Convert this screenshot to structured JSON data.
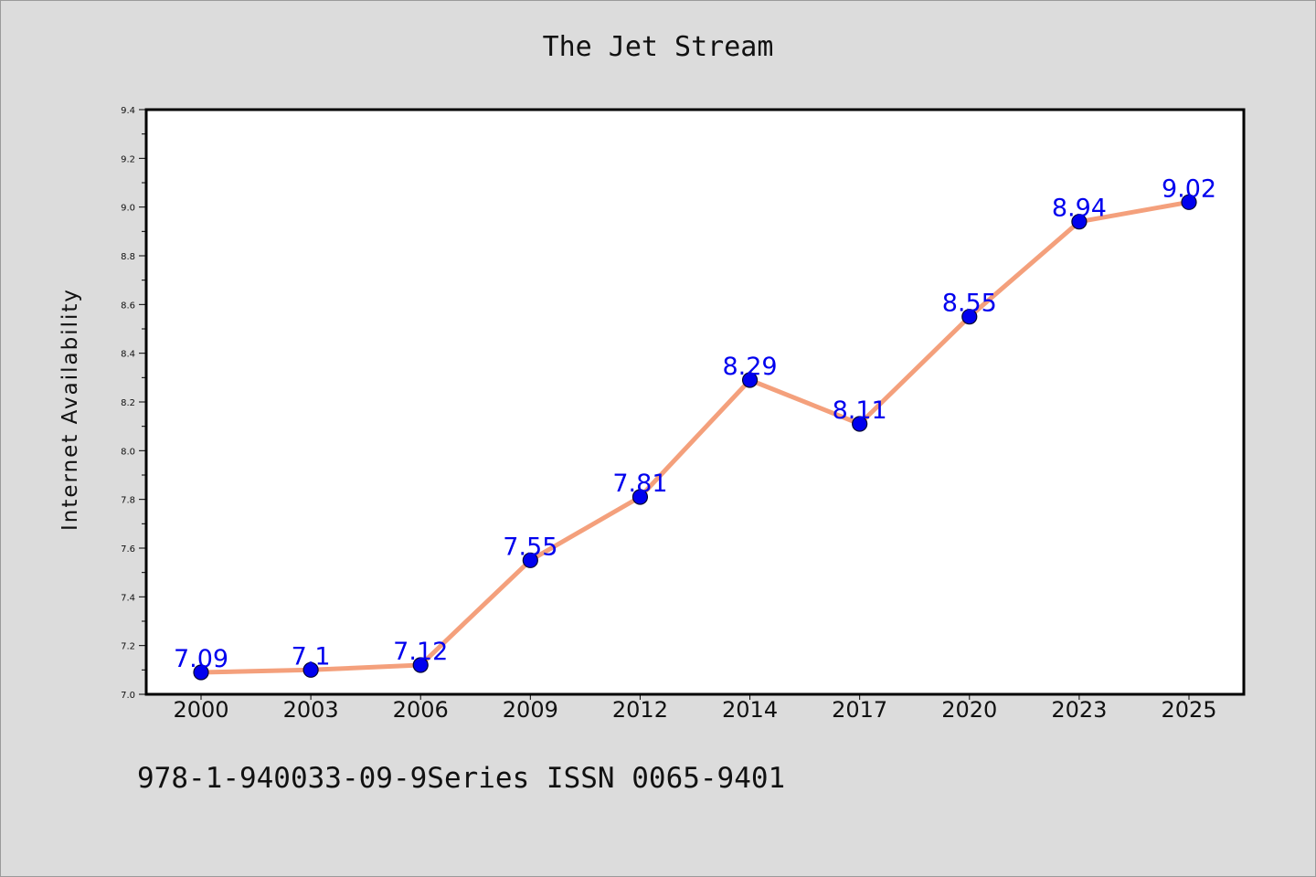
{
  "chart_data": {
    "type": "line",
    "title": "The Jet Stream",
    "xlabel": "",
    "ylabel": "Internet Availability",
    "categories": [
      "2000",
      "2003",
      "2006",
      "2009",
      "2012",
      "2014",
      "2017",
      "2020",
      "2023",
      "2025"
    ],
    "series": [
      {
        "values": [
          7.09,
          7.1,
          7.12,
          7.55,
          7.81,
          8.29,
          8.11,
          8.55,
          8.94,
          9.02
        ],
        "labels": [
          "7.09",
          "7.1",
          "7.12",
          "7.55",
          "7.81",
          "8.29",
          "8.11",
          "8.55",
          "8.94",
          "9.02"
        ]
      }
    ],
    "ylim": [
      7.0,
      9.4
    ],
    "yticks": [
      "7.0",
      "7.2",
      "7.4",
      "7.6",
      "7.8",
      "8.0",
      "8.2",
      "8.4",
      "8.6",
      "8.8",
      "9.0",
      "9.2",
      "9.4"
    ],
    "grid": false,
    "legend": "none",
    "colors": {
      "line": "#f4a07c",
      "marker": "#0000ee",
      "marker_edge": "#000033",
      "data_label": "#0000ee",
      "plot_background": "#ffffff",
      "figure_background": "#dcdcdc"
    }
  },
  "footer": {
    "text": "978-1-940033-09-9Series ISSN 0065-9401"
  }
}
